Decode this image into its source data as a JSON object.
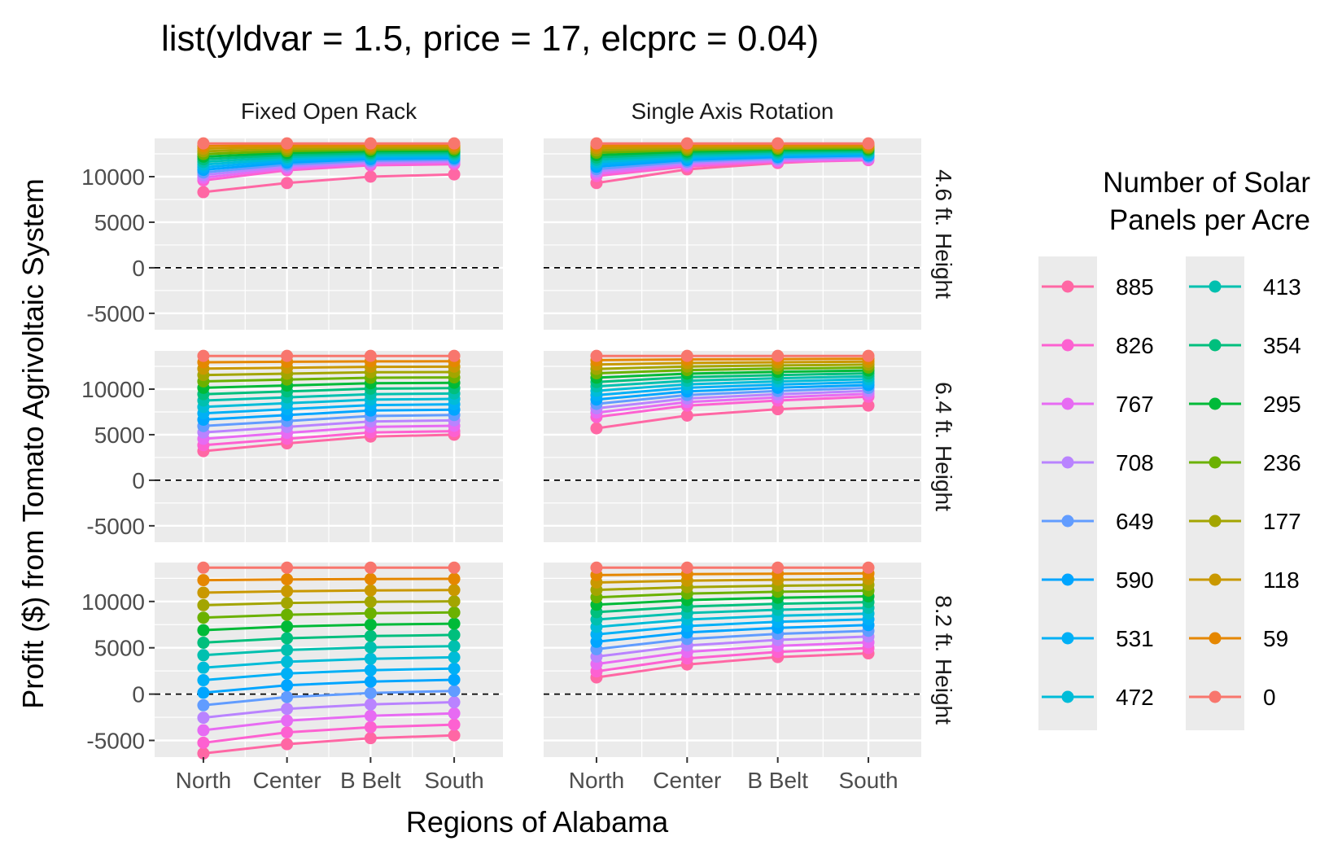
{
  "chart_data": {
    "type": "line",
    "title": "list(yldvar = 1.5, price = 17, elcprc = 0.04)",
    "xlabel": "Regions of Alabama",
    "ylabel": "Profit ($) from Tomato Agrivoltaic System",
    "categories": [
      "North",
      "Center",
      "B Belt",
      "South"
    ],
    "ylim": [
      -6800,
      14200
    ],
    "yticks": [
      -5000,
      0,
      5000,
      10000
    ],
    "ytick_labels": [
      "-5000",
      "0",
      "5000",
      "10000"
    ],
    "reference_line": {
      "y": 0,
      "style": "dashed"
    },
    "facet_columns": [
      "Fixed Open Rack",
      "Single Axis Rotation"
    ],
    "facet_rows": [
      "4.6 ft. Height",
      "6.4 ft. Height",
      "8.2 ft. Height"
    ],
    "legend": {
      "title_lines": [
        "Number of Solar",
        "Panels per Acre"
      ],
      "placement": "right",
      "columns": [
        [
          "885",
          "826",
          "767",
          "708",
          "649",
          "590",
          "531",
          "472"
        ],
        [
          "413",
          "354",
          "295",
          "236",
          "177",
          "118",
          "59",
          "0"
        ]
      ]
    },
    "series_names": [
      "0",
      "59",
      "118",
      "177",
      "236",
      "295",
      "354",
      "413",
      "472",
      "531",
      "590",
      "649",
      "708",
      "767",
      "826",
      "885"
    ],
    "series_colors": [
      "#F8766D",
      "#E58700",
      "#C99800",
      "#A3A500",
      "#6BB100",
      "#00BA38",
      "#00BF7D",
      "#00C0AF",
      "#00BCD8",
      "#00B0F6",
      "#00A5FF",
      "#619CFF",
      "#B983FF",
      "#E76BF3",
      "#FD61D1",
      "#FF67A4"
    ],
    "panels": [
      {
        "col": 0,
        "row": 0,
        "note": "values for panels 0..885 in steps of 59",
        "values": [
          [
            13650,
            13650,
            13650,
            13650
          ],
          [
            13360,
            13440,
            13480,
            13490
          ],
          [
            13070,
            13230,
            13300,
            13330
          ],
          [
            12780,
            13020,
            13130,
            13160
          ],
          [
            12490,
            12810,
            12960,
            13000
          ],
          [
            12200,
            12600,
            12790,
            12840
          ],
          [
            11910,
            12390,
            12620,
            12680
          ],
          [
            11620,
            12180,
            12450,
            12510
          ],
          [
            11330,
            11970,
            12280,
            12350
          ],
          [
            11040,
            11760,
            12110,
            12190
          ],
          [
            10750,
            11550,
            11940,
            12030
          ],
          [
            10460,
            11340,
            11760,
            11860
          ],
          [
            10170,
            11130,
            11590,
            11700
          ],
          [
            9880,
            10920,
            11420,
            11540
          ],
          [
            9590,
            10710,
            11250,
            11370
          ],
          [
            8300,
            9300,
            10000,
            10250
          ]
        ]
      },
      {
        "col": 1,
        "row": 0,
        "values": [
          [
            13650,
            13650,
            13650,
            13650
          ],
          [
            13390,
            13470,
            13500,
            13520
          ],
          [
            13140,
            13290,
            13350,
            13390
          ],
          [
            12880,
            13110,
            13200,
            13260
          ],
          [
            12630,
            12930,
            13060,
            13120
          ],
          [
            12370,
            12750,
            12910,
            12990
          ],
          [
            12110,
            12560,
            12760,
            12860
          ],
          [
            11860,
            12380,
            12610,
            12730
          ],
          [
            11600,
            12200,
            12460,
            12600
          ],
          [
            11350,
            12020,
            12320,
            12470
          ],
          [
            11090,
            11840,
            12170,
            12330
          ],
          [
            10830,
            11660,
            12020,
            12200
          ],
          [
            10580,
            11480,
            11870,
            12070
          ],
          [
            10320,
            11300,
            11720,
            11940
          ],
          [
            10070,
            11120,
            11580,
            11810
          ],
          [
            9300,
            10800,
            11500,
            11950
          ]
        ]
      },
      {
        "col": 0,
        "row": 1,
        "values": [
          [
            13650,
            13650,
            13650,
            13650
          ],
          [
            12950,
            13000,
            13050,
            13060
          ],
          [
            12250,
            12350,
            12450,
            12470
          ],
          [
            11550,
            11700,
            11850,
            11880
          ],
          [
            10850,
            11050,
            11250,
            11290
          ],
          [
            10150,
            10400,
            10650,
            10700
          ],
          [
            9450,
            9750,
            10050,
            10110
          ],
          [
            8750,
            9100,
            9450,
            9520
          ],
          [
            8050,
            8450,
            8850,
            8930
          ],
          [
            7350,
            7800,
            8250,
            8340
          ],
          [
            6650,
            7150,
            7650,
            7750
          ],
          [
            5950,
            6500,
            7050,
            7160
          ],
          [
            5250,
            5850,
            6450,
            6570
          ],
          [
            4550,
            5200,
            5850,
            5980
          ],
          [
            3850,
            4550,
            5250,
            5390
          ],
          [
            3200,
            4050,
            4800,
            5000
          ]
        ]
      },
      {
        "col": 1,
        "row": 1,
        "values": [
          [
            13650,
            13650,
            13650,
            13650
          ],
          [
            13180,
            13260,
            13300,
            13330
          ],
          [
            12700,
            12870,
            12950,
            13010
          ],
          [
            12220,
            12480,
            12600,
            12690
          ],
          [
            11740,
            12090,
            12250,
            12370
          ],
          [
            11260,
            11700,
            11900,
            12050
          ],
          [
            10780,
            11310,
            11550,
            11730
          ],
          [
            10300,
            10920,
            11200,
            11410
          ],
          [
            9820,
            10530,
            10850,
            11090
          ],
          [
            9340,
            10140,
            10500,
            10770
          ],
          [
            8860,
            9750,
            10150,
            10450
          ],
          [
            8380,
            9360,
            9800,
            10130
          ],
          [
            7900,
            8970,
            9450,
            9810
          ],
          [
            7420,
            8580,
            9100,
            9490
          ],
          [
            6940,
            8190,
            8750,
            9170
          ],
          [
            5700,
            7100,
            7800,
            8200
          ]
        ]
      },
      {
        "col": 0,
        "row": 2,
        "values": [
          [
            13650,
            13650,
            13650,
            13650
          ],
          [
            12300,
            12380,
            12420,
            12440
          ],
          [
            10950,
            11110,
            11190,
            11230
          ],
          [
            9600,
            9840,
            9960,
            10020
          ],
          [
            8250,
            8570,
            8730,
            8810
          ],
          [
            6900,
            7300,
            7500,
            7600
          ],
          [
            5550,
            6030,
            6270,
            6390
          ],
          [
            4200,
            4760,
            5040,
            5180
          ],
          [
            2850,
            3490,
            3810,
            3970
          ],
          [
            1500,
            2220,
            2580,
            2760
          ],
          [
            150,
            950,
            1350,
            1550
          ],
          [
            -1200,
            -320,
            120,
            340
          ],
          [
            -2550,
            -1590,
            -1110,
            -870
          ],
          [
            -3900,
            -2860,
            -2340,
            -2080
          ],
          [
            -5250,
            -4130,
            -3570,
            -3290
          ],
          [
            -6400,
            -5400,
            -4750,
            -4450
          ]
        ]
      },
      {
        "col": 1,
        "row": 2,
        "values": [
          [
            13650,
            13650,
            13650,
            13650
          ],
          [
            12850,
            12950,
            13000,
            13030
          ],
          [
            12050,
            12250,
            12350,
            12410
          ],
          [
            11250,
            11550,
            11700,
            11790
          ],
          [
            10450,
            10850,
            11050,
            11170
          ],
          [
            9650,
            10150,
            10400,
            10550
          ],
          [
            8850,
            9450,
            9750,
            9930
          ],
          [
            8050,
            8750,
            9100,
            9310
          ],
          [
            7250,
            8050,
            8450,
            8690
          ],
          [
            6450,
            7350,
            7800,
            8070
          ],
          [
            5650,
            6650,
            7150,
            7450
          ],
          [
            4850,
            5950,
            6500,
            6830
          ],
          [
            4050,
            5250,
            5850,
            6210
          ],
          [
            3250,
            4550,
            5200,
            5590
          ],
          [
            2450,
            3850,
            4550,
            4970
          ],
          [
            1800,
            3200,
            4000,
            4400
          ]
        ]
      }
    ]
  }
}
